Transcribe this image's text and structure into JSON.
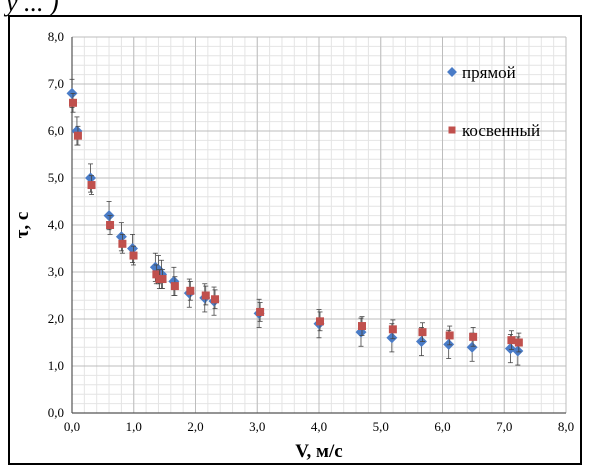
{
  "caption_fragment": "у ... )",
  "chart_data": {
    "type": "scatter",
    "title": "",
    "xlabel": "V, м/с",
    "ylabel": "τ, с",
    "xlim": [
      0,
      8
    ],
    "ylim": [
      0,
      8
    ],
    "x_ticks": [
      "0,0",
      "1,0",
      "2,0",
      "3,0",
      "4,0",
      "5,0",
      "6,0",
      "7,0",
      "8,0"
    ],
    "y_ticks": [
      "0,0",
      "1,0",
      "2,0",
      "3,0",
      "4,0",
      "5,0",
      "6,0",
      "7,0",
      "8,0"
    ],
    "grid": true,
    "minor_grid": true,
    "legend_position": "top-right",
    "series": [
      {
        "name": "прямой",
        "marker": "diamond",
        "color": "#4a7cc7",
        "x": [
          0.0,
          0.08,
          0.3,
          0.6,
          0.8,
          0.98,
          1.35,
          1.4,
          1.45,
          1.65,
          1.9,
          2.15,
          2.3,
          3.03,
          4.0,
          4.68,
          5.18,
          5.66,
          6.1,
          6.48,
          7.1,
          7.22
        ],
        "y": [
          6.8,
          6.0,
          5.0,
          4.2,
          3.75,
          3.5,
          3.1,
          3.05,
          2.95,
          2.8,
          2.55,
          2.45,
          2.38,
          2.12,
          1.9,
          1.72,
          1.6,
          1.52,
          1.46,
          1.4,
          1.37,
          1.32
        ],
        "err": [
          0.3,
          0.3,
          0.3,
          0.3,
          0.3,
          0.3,
          0.3,
          0.3,
          0.3,
          0.3,
          0.3,
          0.3,
          0.3,
          0.3,
          0.3,
          0.3,
          0.3,
          0.3,
          0.3,
          0.3,
          0.3,
          0.3
        ]
      },
      {
        "name": "косвенный",
        "marker": "square",
        "color": "#c0504d",
        "x": [
          0.0,
          0.08,
          0.3,
          0.6,
          0.8,
          0.98,
          1.35,
          1.4,
          1.45,
          1.65,
          1.9,
          2.15,
          2.3,
          3.03,
          4.0,
          4.68,
          5.18,
          5.66,
          6.1,
          6.48,
          7.1,
          7.22
        ],
        "y": [
          6.6,
          5.9,
          4.85,
          4.0,
          3.6,
          3.35,
          2.95,
          2.85,
          2.85,
          2.7,
          2.6,
          2.5,
          2.42,
          2.15,
          1.95,
          1.85,
          1.78,
          1.72,
          1.65,
          1.62,
          1.55,
          1.5
        ],
        "err": [
          0.2,
          0.2,
          0.2,
          0.2,
          0.2,
          0.2,
          0.2,
          0.2,
          0.2,
          0.2,
          0.2,
          0.2,
          0.2,
          0.2,
          0.2,
          0.2,
          0.2,
          0.2,
          0.2,
          0.2,
          0.2,
          0.2
        ]
      }
    ]
  }
}
